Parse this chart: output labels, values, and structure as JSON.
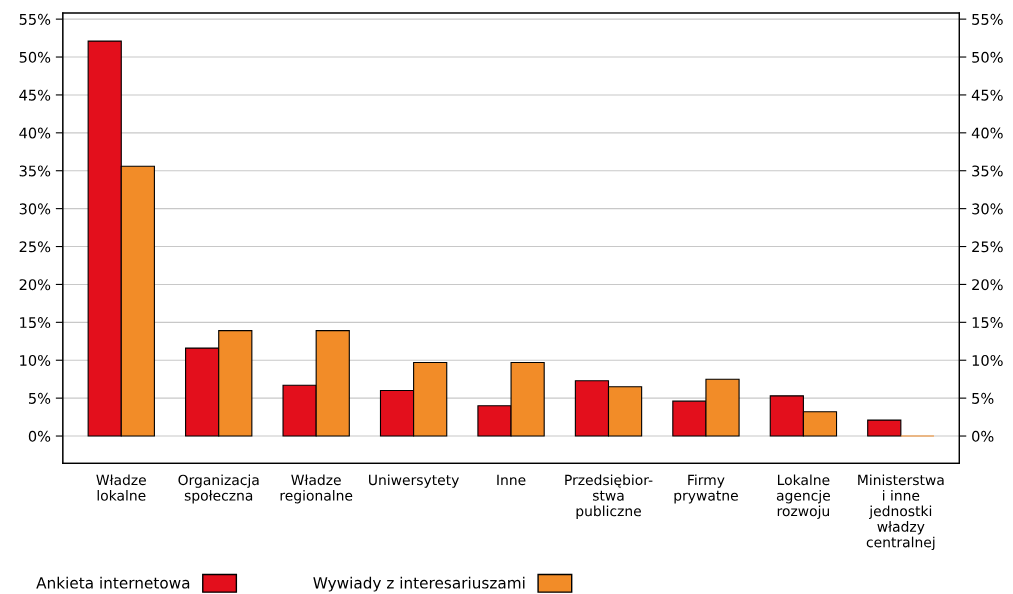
{
  "chart_data": {
    "type": "bar",
    "categories": [
      "Władze\nlokalne",
      "Organizacja\nspołeczna",
      "Władze\nregionalne",
      "Uniwersytety",
      "Inne",
      "Przedsiębior-\nstwa\npubliczne",
      "Firmy\nprywatne",
      "Lokalne\nagencje\nrozwoju",
      "Ministerstwa\ni inne\njednostki\nwładzy\ncentralnej"
    ],
    "series": [
      {
        "name": "Ankieta internetowa",
        "color": "#e30f1c",
        "values": [
          52.1,
          11.6,
          6.7,
          6.0,
          4.0,
          7.3,
          4.6,
          5.3,
          2.1
        ]
      },
      {
        "name": "Wywiady z interesariuszami",
        "color": "#f28c28",
        "values": [
          35.6,
          13.9,
          13.9,
          9.7,
          9.7,
          6.5,
          7.5,
          3.2,
          0
        ]
      }
    ],
    "ylim": [
      -3.6,
      55.8
    ],
    "yticks": [
      {
        "value": 0,
        "label": "0%"
      },
      {
        "value": 5,
        "label": "5%"
      },
      {
        "value": 10,
        "label": "10%"
      },
      {
        "value": 15,
        "label": "15%"
      },
      {
        "value": 20,
        "label": "20%"
      },
      {
        "value": 25,
        "label": "25%"
      },
      {
        "value": 30,
        "label": "30%"
      },
      {
        "value": 35,
        "label": "35%"
      },
      {
        "value": 40,
        "label": "40%"
      },
      {
        "value": 45,
        "label": "45%"
      },
      {
        "value": 50,
        "label": "50%"
      },
      {
        "value": 55,
        "label": "55%"
      }
    ],
    "y2lim": [
      -3.6,
      55.8
    ],
    "y2ticks": [
      {
        "value": 0,
        "label": "0%"
      },
      {
        "value": 5,
        "label": "5%"
      },
      {
        "value": 10,
        "label": "10%"
      },
      {
        "value": 15,
        "label": "15%"
      },
      {
        "value": 20,
        "label": "20%"
      },
      {
        "value": 25,
        "label": "25%"
      },
      {
        "value": 30,
        "label": "30%"
      },
      {
        "value": 35,
        "label": "35%"
      },
      {
        "value": 40,
        "label": "40%"
      },
      {
        "value": 45,
        "label": "45%"
      },
      {
        "value": 50,
        "label": "50%"
      },
      {
        "value": 55,
        "label": "55%"
      }
    ],
    "grid": "y",
    "legend": "bottom"
  }
}
